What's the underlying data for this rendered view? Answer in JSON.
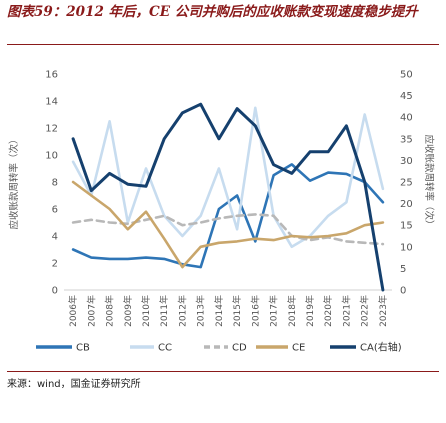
{
  "header": {
    "title": "图表59：2012 年后，CE 公司并购后的应收账款变现速度稳步提升"
  },
  "source": "来源：wind，国金证券研究所",
  "chart_data": {
    "type": "line",
    "categories": [
      "2006年",
      "2007年",
      "2008年",
      "2009年",
      "2010年",
      "2011年",
      "2012年",
      "2013年",
      "2014年",
      "2015年",
      "2016年",
      "2017年",
      "2018年",
      "2019年",
      "2020年",
      "2021年",
      "2022年",
      "2023年"
    ],
    "left_axis": {
      "label": "应收账款周转率（次）",
      "ticks": [
        "0",
        "2",
        "4",
        "6",
        "8",
        "10",
        "12",
        "14",
        "16"
      ],
      "ylim": [
        0,
        16
      ]
    },
    "right_axis": {
      "label": "应收账款周转率（次）",
      "ticks": [
        "0",
        "5",
        "10",
        "15",
        "20",
        "25",
        "30",
        "35",
        "40",
        "45",
        "50"
      ],
      "ylim": [
        0,
        50
      ]
    },
    "grid": false,
    "legend_position": "bottom",
    "series": [
      {
        "name": "CB",
        "axis": "left",
        "color": "#2e75b6",
        "dash": "solid",
        "values": [
          3.0,
          2.4,
          2.3,
          2.3,
          2.4,
          2.3,
          1.9,
          1.7,
          6.0,
          7.0,
          3.6,
          8.5,
          9.3,
          8.1,
          8.7,
          8.6,
          8.0,
          6.5
        ]
      },
      {
        "name": "CC",
        "axis": "left",
        "color": "#c7dcef",
        "dash": "solid",
        "values": [
          9.5,
          7.0,
          12.5,
          5.0,
          9.0,
          5.5,
          4.0,
          5.5,
          9.0,
          4.5,
          13.5,
          5.5,
          3.2,
          4.0,
          5.5,
          6.5,
          13.0,
          7.5
        ]
      },
      {
        "name": "CD",
        "axis": "left",
        "color": "#b8b8b8",
        "dash": "dash",
        "values": [
          5.0,
          5.2,
          5.0,
          4.9,
          5.2,
          5.5,
          4.8,
          5.0,
          5.3,
          5.5,
          5.6,
          5.5,
          4.0,
          3.7,
          3.9,
          3.6,
          3.5,
          3.4
        ]
      },
      {
        "name": "CE",
        "axis": "left",
        "color": "#c9a66b",
        "dash": "solid",
        "values": [
          8.0,
          7.0,
          6.0,
          4.5,
          5.8,
          3.8,
          1.7,
          3.2,
          3.5,
          3.6,
          3.8,
          3.7,
          4.0,
          3.9,
          4.0,
          4.2,
          4.8,
          5.0
        ]
      },
      {
        "name": "CA(右轴)",
        "axis": "right",
        "color": "#15406e",
        "dash": "solid",
        "values": [
          35,
          23,
          27,
          24.5,
          24,
          35,
          41,
          43,
          35,
          42,
          38,
          29,
          27,
          32,
          32,
          38,
          25,
          0
        ]
      }
    ]
  }
}
